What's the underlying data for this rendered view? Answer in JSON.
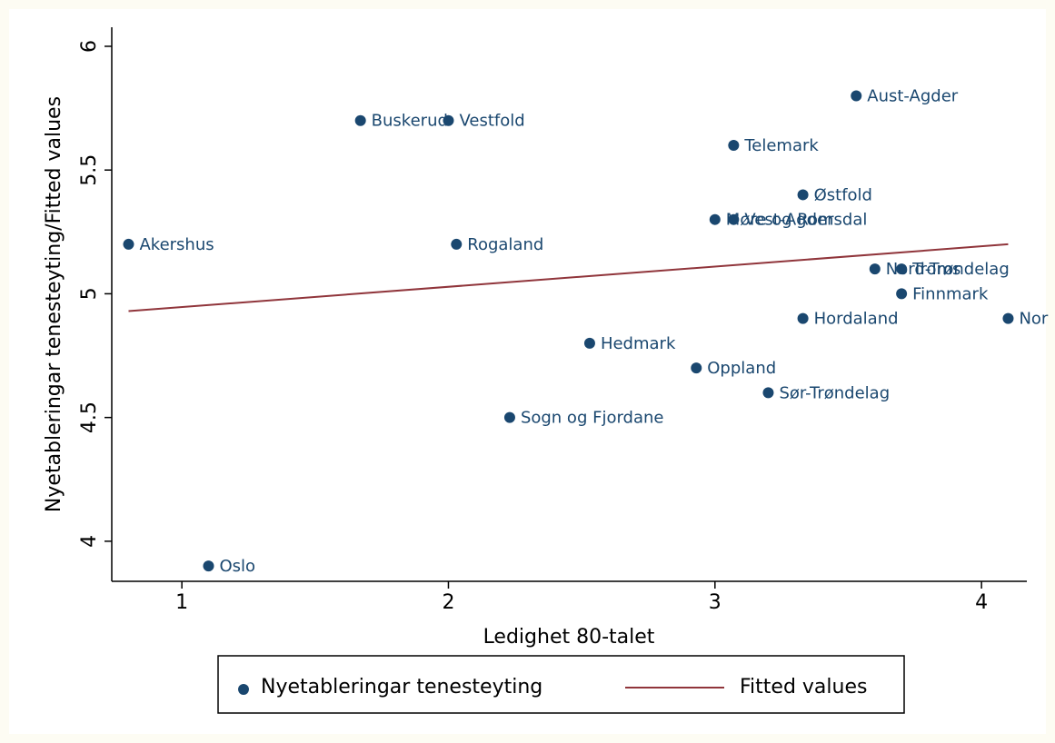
{
  "chart_data": {
    "type": "scatter",
    "xlabel": "Ledighet 80-talet",
    "ylabel": "Nyetableringar tenesteyting/Fitted values",
    "xlim": [
      0.737,
      4.17
    ],
    "xticks": [
      1,
      2,
      3,
      4
    ],
    "ylim": [
      3.838,
      6.077
    ],
    "yticks": [
      4,
      4.5,
      5,
      5.5,
      6
    ],
    "grid": false,
    "legend": "bottom",
    "series": [
      {
        "name": "Nyetableringar tenesteyting",
        "color": "#1a476f",
        "x": [
          0.8,
          1.1,
          1.67,
          2.0,
          2.03,
          2.23,
          2.53,
          2.93,
          3.0,
          3.07,
          3.07,
          3.2,
          3.33,
          3.33,
          3.53,
          3.6,
          3.7,
          3.7,
          4.1
        ],
        "values": [
          5.2,
          3.9,
          5.7,
          5.7,
          5.2,
          4.5,
          4.8,
          4.7,
          5.3,
          5.3,
          5.6,
          4.6,
          5.4,
          4.9,
          5.8,
          5.1,
          5.1,
          5.0,
          4.9
        ],
        "labels": [
          "Akershus",
          "Oslo",
          "Buskerud",
          "Vestfold",
          "Rogaland",
          "Sogn og Fjordane",
          "Hedmark",
          "Oppland",
          "Møre og Romsdal",
          "Vest-Agder",
          "Telemark",
          "Sør-Trøndelag",
          "Østfold",
          "Hordaland",
          "Aust-Agder",
          "Nord-Trøndelag",
          "Troms",
          "Finnmark",
          "Nor"
        ]
      },
      {
        "name": "Fitted values",
        "color": "#90353b",
        "type": "line",
        "x": [
          0.8,
          4.1
        ],
        "values": [
          4.93,
          5.2
        ]
      }
    ]
  }
}
